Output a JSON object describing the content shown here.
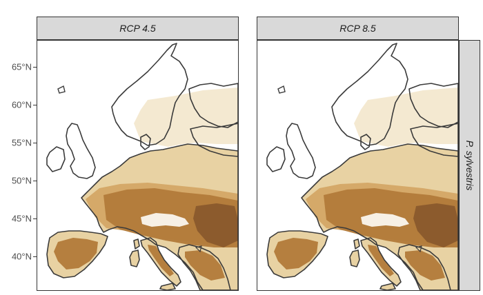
{
  "panels": [
    {
      "label": "RCP 4.5",
      "scenario": "rcp45"
    },
    {
      "label": "RCP 8.5",
      "scenario": "rcp85"
    }
  ],
  "row_label": "P. sylvestris",
  "y_axis": {
    "ticks": [
      {
        "label": "65°N",
        "lat": 65
      },
      {
        "label": "60°N",
        "lat": 60
      },
      {
        "label": "55°N",
        "lat": 55
      },
      {
        "label": "50°N",
        "lat": 50
      },
      {
        "label": "45°N",
        "lat": 45
      },
      {
        "label": "40°N",
        "lat": 40
      }
    ]
  },
  "colors": {
    "coastline": "#3a3a3a",
    "very_low": "#f3e8cf",
    "low": "#e8d2a3",
    "medium": "#d4a766",
    "high": "#b27a3a",
    "very_high": "#8a5a2c",
    "mountain_white": "#fbf7ee",
    "strip_bg": "#d9d9d9"
  }
}
